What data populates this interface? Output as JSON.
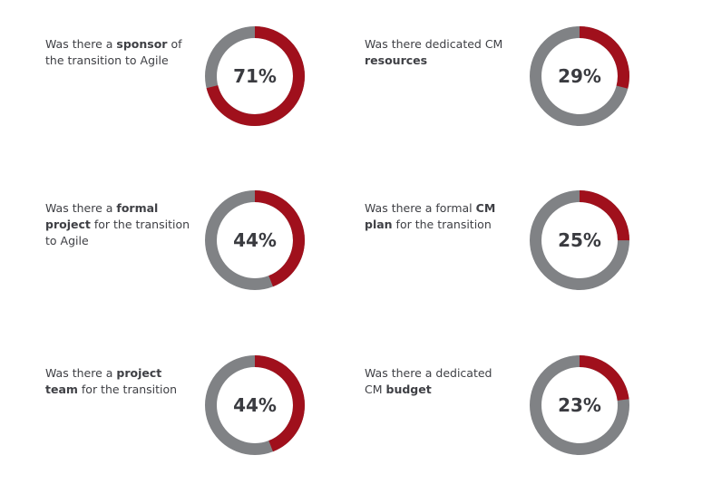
{
  "colors": {
    "highlight": "#a0101c",
    "remainder": "#808285",
    "text": "#3f4045"
  },
  "chart_data": [
    {
      "type": "pie",
      "variant": "donut",
      "value": 71,
      "label_text": "71%",
      "caption": [
        [
          "Was there a ",
          false
        ],
        [
          "sponsor",
          true
        ],
        [
          " of the transition to Agile",
          false
        ]
      ]
    },
    {
      "type": "pie",
      "variant": "donut",
      "value": 29,
      "label_text": "29%",
      "caption": [
        [
          "Was there dedicated CM ",
          false
        ],
        [
          "resources",
          true
        ]
      ]
    },
    {
      "type": "pie",
      "variant": "donut",
      "value": 44,
      "label_text": "44%",
      "caption": [
        [
          "Was there a ",
          false
        ],
        [
          "formal project",
          true
        ],
        [
          " for the transition to Agile",
          false
        ]
      ]
    },
    {
      "type": "pie",
      "variant": "donut",
      "value": 25,
      "label_text": "25%",
      "caption": [
        [
          "Was there a formal ",
          false
        ],
        [
          "CM plan",
          true
        ],
        [
          " for the transition",
          false
        ]
      ]
    },
    {
      "type": "pie",
      "variant": "donut",
      "value": 44,
      "label_text": "44%",
      "caption": [
        [
          "Was there a ",
          false
        ],
        [
          "project team",
          true
        ],
        [
          " for the  transition",
          false
        ]
      ]
    },
    {
      "type": "pie",
      "variant": "donut",
      "value": 23,
      "label_text": "23%",
      "caption": [
        [
          "Was there a dedicated CM ",
          false
        ],
        [
          "budget",
          true
        ]
      ]
    }
  ]
}
